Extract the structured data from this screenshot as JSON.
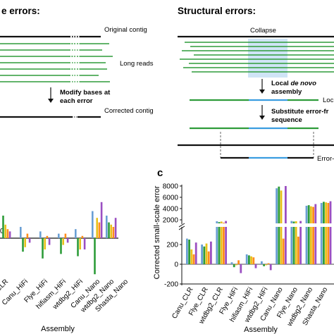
{
  "left_panel": {
    "heading": "e errors:",
    "original_label": "Original contig",
    "reads_label": "Long reads",
    "step_label_line1": "Modify bases at",
    "step_label_line2": "each error",
    "corrected_label": "Corrected contig"
  },
  "right_panel": {
    "heading": "Structural errors:",
    "collapse_label": "Collapse",
    "step1_line1_pre": "Local ",
    "step1_line1_em": "de novo",
    "step1_line2": "assembly",
    "local_label": "Loc",
    "step2_line1": "Substitute error-fr",
    "step2_line2": "sequence",
    "errorfree_label": "Error-fr"
  },
  "chart_data": [
    {
      "panel": "b",
      "type": "bar",
      "title": "",
      "xlabel": "Assembly",
      "ylabel": "",
      "categories": [
        "CLR",
        "Canu_HiFi",
        "Flye_HiFi",
        "hifiasm_HiFi",
        "wtdbg2_HiFi",
        "Canu_Nano",
        "wtdbg2_Nano",
        "Shasta_Nano"
      ],
      "note": "partially cropped; values in relative units, axis truncated at left edge"
    },
    {
      "panel": "c",
      "type": "bar",
      "title": "",
      "xlabel": "Assembly",
      "ylabel": "Corrected small-scale error",
      "y_ticks_lower": [
        "-200",
        "0",
        "200"
      ],
      "y_ticks_upper": [
        "2000",
        "4000",
        "6000",
        "8000"
      ],
      "y_break": [
        300,
        1500
      ],
      "categories": [
        "Canu_CLR",
        "Flye_CLR",
        "wtdbg2_CLR",
        "Flye_HiFi",
        "hifiasm_HiFi",
        "wtdbg2_HiFi",
        "Canu_Nano",
        "Flye_Nano",
        "wtdbg2_Nano",
        "Shasta_Nano"
      ],
      "colors": [
        "#6a9fd4",
        "#2e9c3a",
        "#e8c21a",
        "#ff8c1a",
        "#9b4fc2"
      ],
      "series": [
        {
          "values": [
            260,
            200,
            1750,
            20,
            100,
            30,
            7600,
            1800,
            4500,
            5000
          ]
        },
        {
          "values": [
            250,
            180,
            1600,
            -30,
            90,
            -20,
            7900,
            1700,
            4600,
            5200
          ]
        },
        {
          "values": [
            150,
            210,
            1700,
            -10,
            80,
            -10,
            7200,
            1750,
            4400,
            5100
          ]
        },
        {
          "values": [
            100,
            130,
            1500,
            40,
            70,
            10,
            260,
            280,
            4300,
            5000
          ]
        },
        {
          "values": [
            220,
            230,
            1800,
            -90,
            -40,
            -60,
            8000,
            1800,
            4800,
            5300
          ]
        }
      ]
    }
  ]
}
